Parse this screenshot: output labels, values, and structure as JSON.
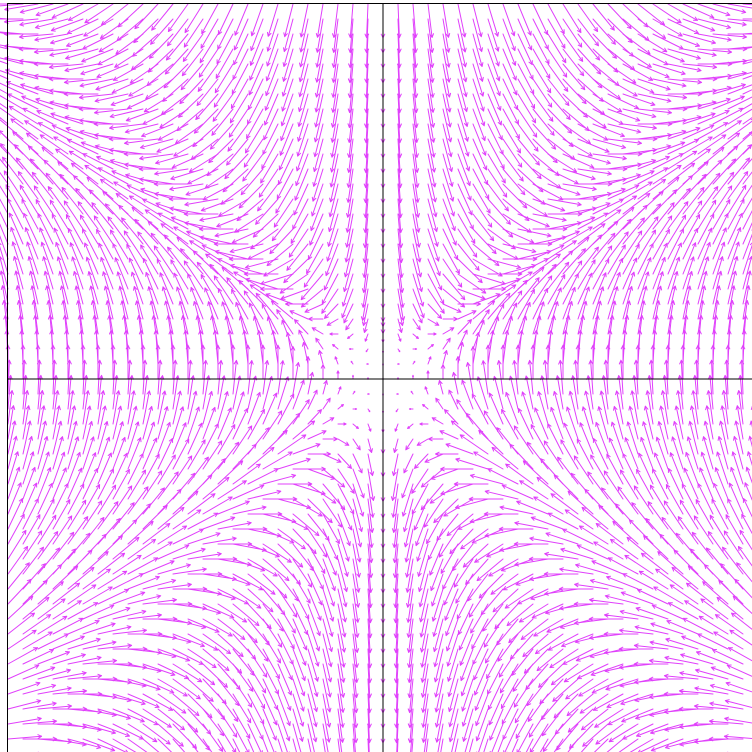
{
  "chart_data": {
    "type": "vector_field",
    "title": "",
    "xlabel": "",
    "ylabel": "",
    "grid": false,
    "legend": "none",
    "xlim": [
      -5,
      5
    ],
    "ylim": [
      -5,
      5
    ],
    "sample_step": 0.2,
    "color": "#e040fb",
    "axis_color": "#000000",
    "background": "#ffffff",
    "field": {
      "u": "x*y",
      "v": "x*x - y*y",
      "magnitude_cap": 1.5,
      "arrow_scale": 0.5
    }
  }
}
